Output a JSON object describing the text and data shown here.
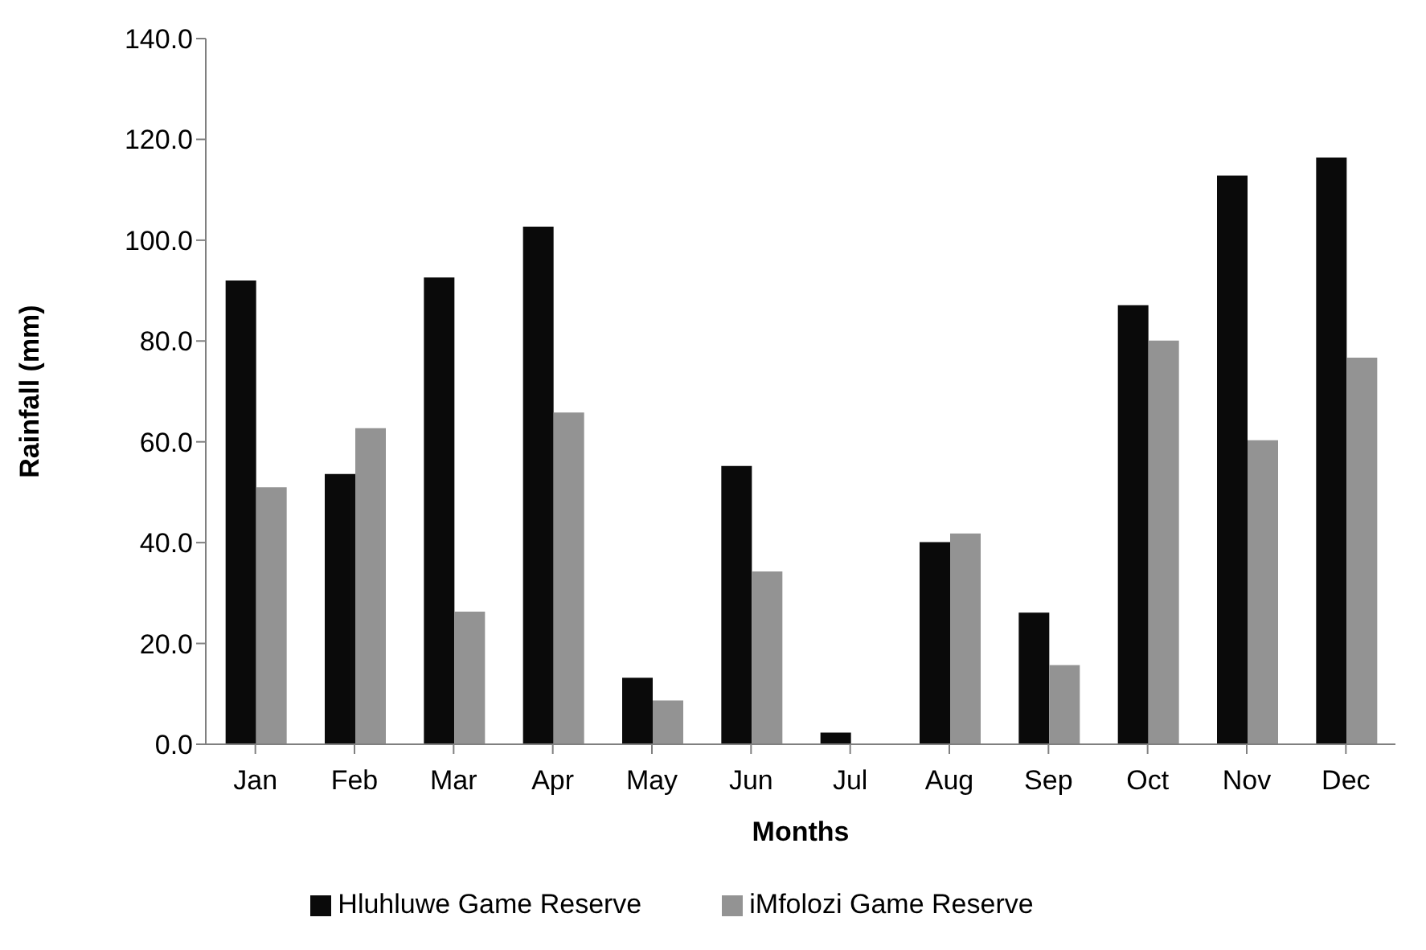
{
  "chart_data": {
    "type": "bar",
    "xlabel": "Months",
    "ylabel": "Rainfall (mm)",
    "categories": [
      "Jan",
      "Feb",
      "Mar",
      "Apr",
      "May",
      "Jun",
      "Jul",
      "Aug",
      "Sep",
      "Oct",
      "Nov",
      "Dec"
    ],
    "series": [
      {
        "name": "Hluhluwe Game Reserve",
        "color": "#0a0a0a",
        "values": [
          92.0,
          53.6,
          92.6,
          102.7,
          13.2,
          55.2,
          2.3,
          40.1,
          26.1,
          87.1,
          112.8,
          116.4
        ]
      },
      {
        "name": "iMfolozi Game Reserve",
        "color": "#939393",
        "values": [
          51.0,
          62.7,
          26.3,
          65.8,
          8.7,
          34.3,
          0,
          41.8,
          15.7,
          80.1,
          60.3,
          76.7
        ]
      }
    ],
    "ylim": [
      0,
      140
    ],
    "yticks": [
      {
        "value": 0,
        "label": "0.0"
      },
      {
        "value": 20,
        "label": "20.0"
      },
      {
        "value": 40,
        "label": "40.0"
      },
      {
        "value": 60,
        "label": "60.0"
      },
      {
        "value": 80,
        "label": "80.0"
      },
      {
        "value": 100,
        "label": "100.0"
      },
      {
        "value": 120,
        "label": "120.0"
      },
      {
        "value": 140,
        "label": "140.0"
      }
    ],
    "grid": false,
    "legend": "bottom"
  }
}
